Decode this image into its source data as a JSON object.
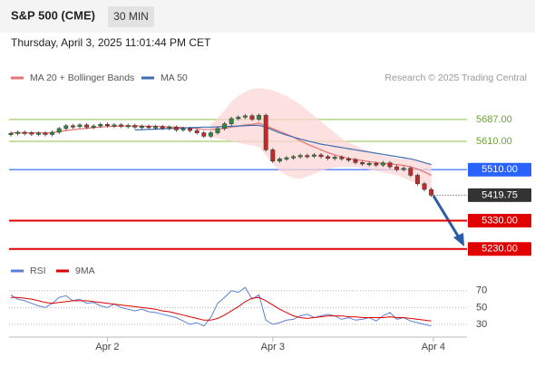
{
  "header": {
    "title": "S&P 500 (CME)",
    "timeframe": "30 MIN",
    "datetime": "Thursday, April 3, 2025 11:01:44 PM CET"
  },
  "chart_data": [
    {
      "type": "candlestick",
      "credit": "Research © 2025 Trading Central",
      "up_color": "#2e8b3a",
      "down_color": "#c62828",
      "closes": [
        5638,
        5642,
        5640,
        5636,
        5639,
        5634,
        5642,
        5655,
        5665,
        5662,
        5668,
        5660,
        5664,
        5670,
        5666,
        5668,
        5664,
        5666,
        5660,
        5663,
        5658,
        5662,
        5656,
        5660,
        5650,
        5655,
        5648,
        5640,
        5628,
        5640,
        5655,
        5672,
        5690,
        5695,
        5700,
        5688,
        5702,
        5580,
        5540,
        5548,
        5552,
        5556,
        5560,
        5558,
        5562,
        5556,
        5550,
        5554,
        5548,
        5545,
        5535,
        5530,
        5532,
        5526,
        5534,
        5520,
        5510,
        5515,
        5490,
        5460,
        5440,
        5419.75
      ],
      "series": [
        {
          "name": "MA 20 + Bollinger Bands",
          "color": "#e57373",
          "band_color": "#fcd5d5",
          "values": [
            5640,
            5640,
            5640,
            5640,
            5640,
            5640,
            5640,
            5645,
            5648,
            5651,
            5654,
            5656,
            5658,
            5660,
            5662,
            5663,
            5664,
            5664,
            5664,
            5664,
            5663,
            5663,
            5662,
            5661,
            5660,
            5659,
            5657,
            5655,
            5652,
            5652,
            5653,
            5656,
            5660,
            5664,
            5668,
            5670,
            5674,
            5665,
            5655,
            5645,
            5635,
            5625,
            5612,
            5600,
            5590,
            5580,
            5570,
            5562,
            5556,
            5550,
            5546,
            5542,
            5538,
            5535,
            5532,
            5530,
            5528,
            5525,
            5520,
            5512,
            5502,
            5490
          ],
          "upper": [
            null,
            null,
            null,
            null,
            null,
            null,
            null,
            null,
            null,
            null,
            null,
            null,
            null,
            null,
            null,
            null,
            null,
            null,
            null,
            null,
            null,
            null,
            null,
            null,
            null,
            null,
            null,
            null,
            null,
            5670,
            5690,
            5720,
            5750,
            5770,
            5785,
            5795,
            5798,
            5795,
            5790,
            5780,
            5770,
            5755,
            5740,
            5720,
            5700,
            5680,
            5660,
            5640,
            5620,
            5605,
            5595,
            5585,
            5575,
            5565,
            5560,
            5555,
            5550,
            5548,
            5545,
            5540,
            5535,
            5530
          ],
          "lower": [
            null,
            null,
            null,
            null,
            null,
            null,
            null,
            null,
            null,
            null,
            null,
            null,
            null,
            null,
            null,
            null,
            null,
            null,
            null,
            null,
            null,
            null,
            null,
            null,
            null,
            null,
            null,
            null,
            null,
            5625,
            5620,
            5615,
            5610,
            5605,
            5600,
            5595,
            5590,
            5560,
            5530,
            5505,
            5490,
            5480,
            5478,
            5485,
            5495,
            5505,
            5512,
            5518,
            5520,
            5520,
            5520,
            5515,
            5510,
            5505,
            5500,
            5495,
            5490,
            5480,
            5470,
            5460,
            5450,
            5440
          ]
        },
        {
          "name": "MA 50",
          "color": "#3f6db3",
          "values": [
            null,
            null,
            null,
            null,
            null,
            null,
            null,
            null,
            null,
            null,
            null,
            null,
            null,
            null,
            null,
            null,
            null,
            null,
            5650,
            5651,
            5652,
            5653,
            5654,
            5655,
            5656,
            5657,
            5658,
            5659,
            5660,
            5660,
            5661,
            5662,
            5663,
            5664,
            5665,
            5666,
            5666,
            5660,
            5650,
            5640,
            5632,
            5625,
            5618,
            5612,
            5606,
            5600,
            5596,
            5592,
            5588,
            5584,
            5580,
            5576,
            5572,
            5568,
            5564,
            5560,
            5556,
            5552,
            5548,
            5542,
            5535,
            5528
          ]
        }
      ],
      "levels": [
        {
          "value": 5687,
          "label": "5687.00",
          "color": "#8bc34a",
          "box": false
        },
        {
          "value": 5610,
          "label": "5610.00",
          "color": "#8bc34a",
          "box": false
        },
        {
          "value": 5510,
          "label": "5510.00",
          "color": "#2962ff",
          "box": true
        },
        {
          "value": 5330,
          "label": "5330.00",
          "color": "#e00000",
          "box": true
        },
        {
          "value": 5230,
          "label": "5230.00",
          "color": "#e00000",
          "box": true
        }
      ],
      "last_price": 5419.75,
      "xlim": [
        0,
        66
      ],
      "ylim": [
        5213,
        5805
      ]
    },
    {
      "type": "line",
      "series": [
        {
          "name": "RSI",
          "color": "#5b7fd6",
          "values": [
            65,
            60,
            58,
            55,
            52,
            50,
            55,
            62,
            64,
            58,
            60,
            55,
            56,
            52,
            50,
            54,
            50,
            48,
            46,
            48,
            45,
            44,
            42,
            40,
            38,
            34,
            30,
            32,
            28,
            38,
            55,
            62,
            70,
            68,
            74,
            60,
            65,
            35,
            30,
            32,
            35,
            36,
            40,
            42,
            38,
            40,
            42,
            40,
            36,
            38,
            35,
            36,
            38,
            34,
            40,
            44,
            36,
            38,
            34,
            32,
            30,
            28
          ]
        },
        {
          "name": "9MA",
          "color": "#e00000",
          "values": [
            62,
            62,
            61,
            60,
            58,
            56,
            55,
            56,
            57,
            58,
            58,
            58,
            57,
            56,
            55,
            54,
            53,
            52,
            51,
            50,
            49,
            48,
            46,
            45,
            43,
            41,
            39,
            37,
            35,
            35,
            37,
            41,
            46,
            51,
            57,
            61,
            62,
            58,
            53,
            48,
            44,
            40,
            38,
            37,
            38,
            39,
            40,
            40,
            40,
            39,
            39,
            38,
            38,
            38,
            38,
            39,
            38,
            38,
            37,
            36,
            35,
            34
          ]
        }
      ],
      "xlim": [
        0,
        66
      ],
      "ylim": [
        17,
        87
      ],
      "yticks": [
        30,
        50,
        70
      ],
      "xticks": [
        {
          "value": 14,
          "label": "Apr 2"
        },
        {
          "value": 38,
          "label": "Apr 3"
        },
        {
          "value": 61.3,
          "label": "Apr 4"
        }
      ]
    }
  ]
}
